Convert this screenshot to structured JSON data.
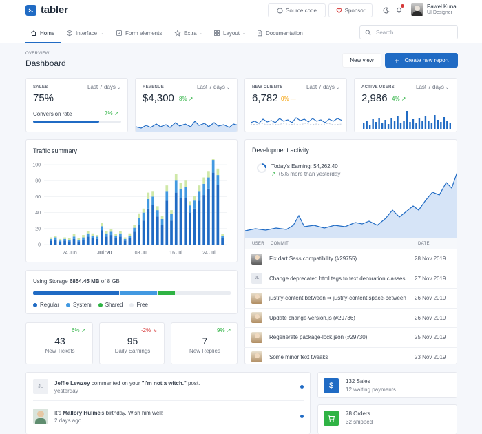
{
  "brand": {
    "name": "tabler"
  },
  "topbar": {
    "source_code": "Source code",
    "sponsor": "Sponsor",
    "user_name": "Paweł Kuna",
    "user_role": "UI Designer"
  },
  "nav": {
    "items": [
      {
        "label": "Home",
        "icon": "home-icon"
      },
      {
        "label": "Interface",
        "icon": "package-icon"
      },
      {
        "label": "Form elements",
        "icon": "checkbox-icon"
      },
      {
        "label": "Extra",
        "icon": "star-icon"
      },
      {
        "label": "Layout",
        "icon": "layout-icon"
      },
      {
        "label": "Documentation",
        "icon": "file-icon"
      }
    ],
    "search_placeholder": "Search…"
  },
  "header": {
    "pretitle": "OVERVIEW",
    "title": "Dashboard",
    "new_view": "New view",
    "create_report": "Create new report"
  },
  "stats": {
    "sales": {
      "label": "SALES",
      "period": "Last 7 days",
      "value": "75%",
      "sub_label": "Conversion rate",
      "delta": "7%",
      "progress": 0.75
    },
    "revenue": {
      "label": "REVENUE",
      "period": "Last 7 days",
      "value": "$4,300",
      "delta": "8%"
    },
    "new_clients": {
      "label": "NEW CLIENTS",
      "period": "Last 7 days",
      "value": "6,782",
      "delta": "0%"
    },
    "active_users": {
      "label": "ACTIVE USERS",
      "period": "Last 7 days",
      "value": "2,986",
      "delta": "4%"
    }
  },
  "traffic": {
    "title": "Traffic summary",
    "y_ticks": [
      "100",
      "80",
      "60",
      "40",
      "20",
      "0"
    ],
    "x_ticks": [
      "24 Jun",
      "Jul '20",
      "08 Jul",
      "16 Jul",
      "24 Jul"
    ]
  },
  "chart_data": {
    "type": "bar",
    "title": "Traffic summary",
    "ylim": [
      0,
      100
    ],
    "series": [
      {
        "name": "",
        "values": [
          5,
          6,
          3,
          5,
          4,
          7,
          4,
          6,
          10,
          8,
          7,
          18,
          10,
          12,
          8,
          10,
          5,
          8,
          16,
          25,
          30,
          45,
          50,
          35,
          25,
          55,
          30,
          65,
          58,
          58,
          40,
          45,
          55,
          62,
          70,
          90,
          75,
          8
        ]
      },
      {
        "name": "",
        "values": [
          2,
          3,
          2,
          2,
          2,
          3,
          2,
          3,
          4,
          3,
          3,
          5,
          4,
          4,
          3,
          4,
          2,
          3,
          5,
          8,
          10,
          12,
          10,
          8,
          7,
          12,
          8,
          15,
          12,
          14,
          9,
          10,
          12,
          14,
          14,
          16,
          12,
          3
        ]
      },
      {
        "name": "",
        "values": [
          2,
          2,
          2,
          2,
          2,
          3,
          2,
          3,
          3,
          3,
          2,
          4,
          3,
          3,
          2,
          3,
          2,
          3,
          4,
          6,
          5,
          8,
          7,
          5,
          4,
          7,
          5,
          8,
          7,
          8,
          5,
          6,
          7,
          8,
          8,
          10,
          8,
          2
        ]
      }
    ]
  },
  "storage": {
    "label_prefix": "Using Storage",
    "used": "6854.45 MB",
    "total": "of 8 GB",
    "legend": [
      "Regular",
      "System",
      "Shared",
      "Free"
    ],
    "fractions": [
      0.44,
      0.19,
      0.09,
      0.28
    ]
  },
  "mini_stats": [
    {
      "value": "43",
      "label": "New Tickets",
      "delta": "6%",
      "trend": "up"
    },
    {
      "value": "95",
      "label": "Daily Earnings",
      "delta": "-2%",
      "trend": "down"
    },
    {
      "value": "7",
      "label": "New Replies",
      "delta": "9%",
      "trend": "up"
    }
  ],
  "dev": {
    "title": "Development activity",
    "earning": "Today's Earning: $4,262.40",
    "earning_sub": "+5% more than yesterday",
    "headers": {
      "user": "USER",
      "commit": "COMMIT",
      "date": "DATE"
    },
    "commits": [
      {
        "message": "Fix dart Sass compatibility (#29755)",
        "date": "28 Nov 2019",
        "avatar": "photo"
      },
      {
        "message": "Change deprecated html tags to text decoration classes",
        "date": "27 Nov 2019",
        "avatar": "JL"
      },
      {
        "message": "justify-content:between ⇒ justify-content:space-between",
        "date": "26 Nov 2019",
        "avatar": "photo"
      },
      {
        "message": "Update change-version.js (#29736)",
        "date": "26 Nov 2019",
        "avatar": "photo"
      },
      {
        "message": "Regenerate package-lock.json (#29730)",
        "date": "25 Nov 2019",
        "avatar": "photo"
      },
      {
        "message": "Some minor text tweaks",
        "date": "23 Nov 2019",
        "avatar": "photo"
      }
    ]
  },
  "activity": [
    {
      "name": "Jeffie Lewzey",
      "text1": " commented on your ",
      "quote": "\"I'm not a witch.\"",
      "text2": " post.",
      "time": "yesterday",
      "avatar": "JL"
    },
    {
      "pre": "It's ",
      "name": "Mallory Hulme",
      "text1": "'s birthday. Wish him well!",
      "time": "2 days ago",
      "avatar": "photo"
    }
  ],
  "summary": [
    {
      "title": "132 Sales",
      "sub": "12 waiting payments",
      "color": "#206bc4",
      "icon": "dollar-icon"
    },
    {
      "title": "78 Orders",
      "sub": "32 shipped",
      "color": "#2fb344",
      "icon": "cart-icon"
    }
  ],
  "colors": {
    "primary": "#206bc4",
    "secondary": "#4299e1",
    "light": "#cfe8a8"
  }
}
